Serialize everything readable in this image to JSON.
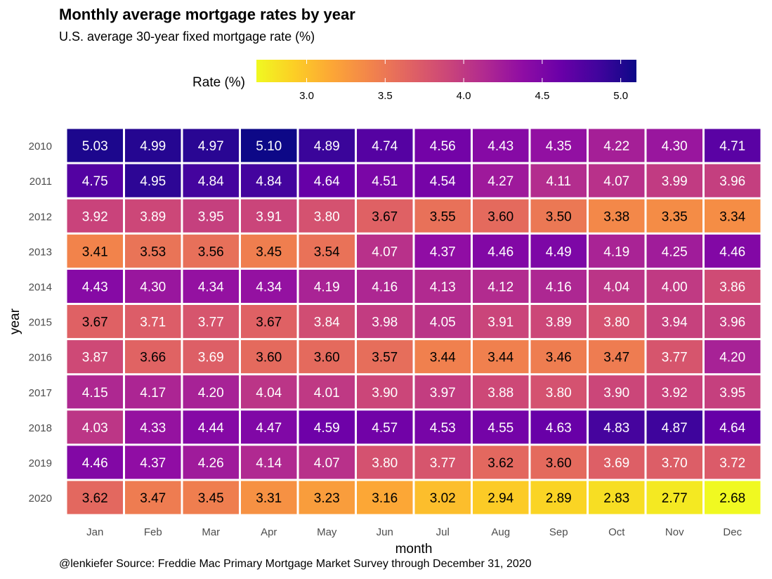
{
  "chart_data": {
    "type": "heatmap",
    "title": "Monthly average mortgage rates by year",
    "subtitle": "U.S. average 30-year fixed mortgage rate (%)",
    "caption": "@lenkiefer Source: Freddie Mac Primary Mortgage Market Survey through December 31, 2020",
    "xlabel": "month",
    "ylabel": "year",
    "x_categories": [
      "Jan",
      "Feb",
      "Mar",
      "Apr",
      "May",
      "Jun",
      "Jul",
      "Aug",
      "Sep",
      "Oct",
      "Nov",
      "Dec"
    ],
    "y_categories": [
      "2010",
      "2011",
      "2012",
      "2013",
      "2014",
      "2015",
      "2016",
      "2017",
      "2018",
      "2019",
      "2020"
    ],
    "values": [
      [
        5.03,
        4.99,
        4.97,
        5.1,
        4.89,
        4.74,
        4.56,
        4.43,
        4.35,
        4.22,
        4.3,
        4.71
      ],
      [
        4.75,
        4.95,
        4.84,
        4.84,
        4.64,
        4.51,
        4.54,
        4.27,
        4.11,
        4.07,
        3.99,
        3.96
      ],
      [
        3.92,
        3.89,
        3.95,
        3.91,
        3.8,
        3.67,
        3.55,
        3.6,
        3.5,
        3.38,
        3.35,
        3.34
      ],
      [
        3.41,
        3.53,
        3.56,
        3.45,
        3.54,
        4.07,
        4.37,
        4.46,
        4.49,
        4.19,
        4.25,
        4.46
      ],
      [
        4.43,
        4.3,
        4.34,
        4.34,
        4.19,
        4.16,
        4.13,
        4.12,
        4.16,
        4.04,
        4.0,
        3.86
      ],
      [
        3.67,
        3.71,
        3.77,
        3.67,
        3.84,
        3.98,
        4.05,
        3.91,
        3.89,
        3.8,
        3.94,
        3.96
      ],
      [
        3.87,
        3.66,
        3.69,
        3.6,
        3.6,
        3.57,
        3.44,
        3.44,
        3.46,
        3.47,
        3.77,
        4.2
      ],
      [
        4.15,
        4.17,
        4.2,
        4.04,
        4.01,
        3.9,
        3.97,
        3.88,
        3.8,
        3.9,
        3.92,
        3.95
      ],
      [
        4.03,
        4.33,
        4.44,
        4.47,
        4.59,
        4.57,
        4.53,
        4.55,
        4.63,
        4.83,
        4.87,
        4.64
      ],
      [
        4.46,
        4.37,
        4.26,
        4.14,
        4.07,
        3.8,
        3.77,
        3.62,
        3.6,
        3.69,
        3.7,
        3.72
      ],
      [
        3.62,
        3.47,
        3.45,
        3.31,
        3.23,
        3.16,
        3.02,
        2.94,
        2.89,
        2.83,
        2.77,
        2.68
      ]
    ],
    "value_format": "2 decimals",
    "colorscale": "plasma (reversed: low = yellow, high = dark blue)",
    "color_range": [
      2.68,
      5.1
    ],
    "legend": {
      "title": "Rate (%)",
      "position": "top",
      "ticks": [
        "3.0",
        "3.5",
        "4.0",
        "4.5",
        "5.0"
      ],
      "tick_values": [
        3.0,
        3.5,
        4.0,
        4.5,
        5.0
      ]
    },
    "grid": false
  }
}
